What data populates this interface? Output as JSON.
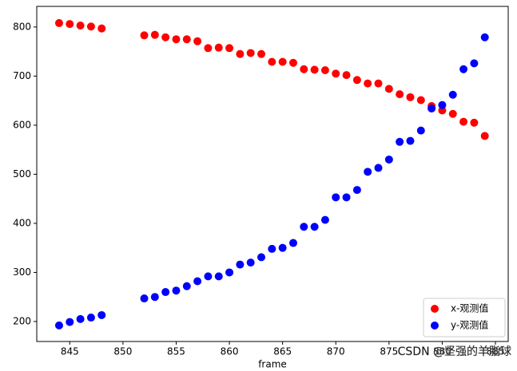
{
  "chart_data": {
    "type": "scatter",
    "xlabel": "frame",
    "x": [
      844,
      845,
      846,
      847,
      848,
      852,
      853,
      854,
      855,
      856,
      857,
      858,
      859,
      860,
      861,
      862,
      863,
      864,
      865,
      866,
      867,
      868,
      869,
      870,
      871,
      872,
      873,
      874,
      875,
      876,
      877,
      878,
      879,
      880,
      881,
      882,
      883,
      884
    ],
    "series": [
      {
        "name": "x-观测值",
        "color": "#ff0000",
        "values": [
          808,
          806,
          803,
          801,
          797,
          783,
          784,
          779,
          775,
          775,
          771,
          757,
          758,
          757,
          745,
          747,
          745,
          729,
          729,
          727,
          714,
          713,
          712,
          705,
          702,
          692,
          685,
          685,
          674,
          663,
          657,
          651,
          639,
          630,
          623,
          607,
          605,
          578
        ]
      },
      {
        "name": "y-观测值",
        "color": "#0000ff",
        "values": [
          192,
          199,
          205,
          208,
          213,
          247,
          250,
          260,
          263,
          272,
          282,
          292,
          292,
          300,
          316,
          320,
          331,
          348,
          350,
          360,
          393,
          393,
          407,
          453,
          453,
          468,
          505,
          513,
          530,
          566,
          568,
          589,
          634,
          641,
          662,
          714,
          726,
          779
        ]
      }
    ],
    "xlim": [
      841.9,
      886.2
    ],
    "ylim": [
      159.3,
      842
    ],
    "xticks": [
      845,
      850,
      855,
      860,
      865,
      870,
      875,
      880,
      885
    ],
    "yticks": [
      200,
      300,
      400,
      500,
      600,
      700,
      800
    ],
    "legend": "lower right",
    "watermark": "CSDN @坚强的羊脂球"
  }
}
